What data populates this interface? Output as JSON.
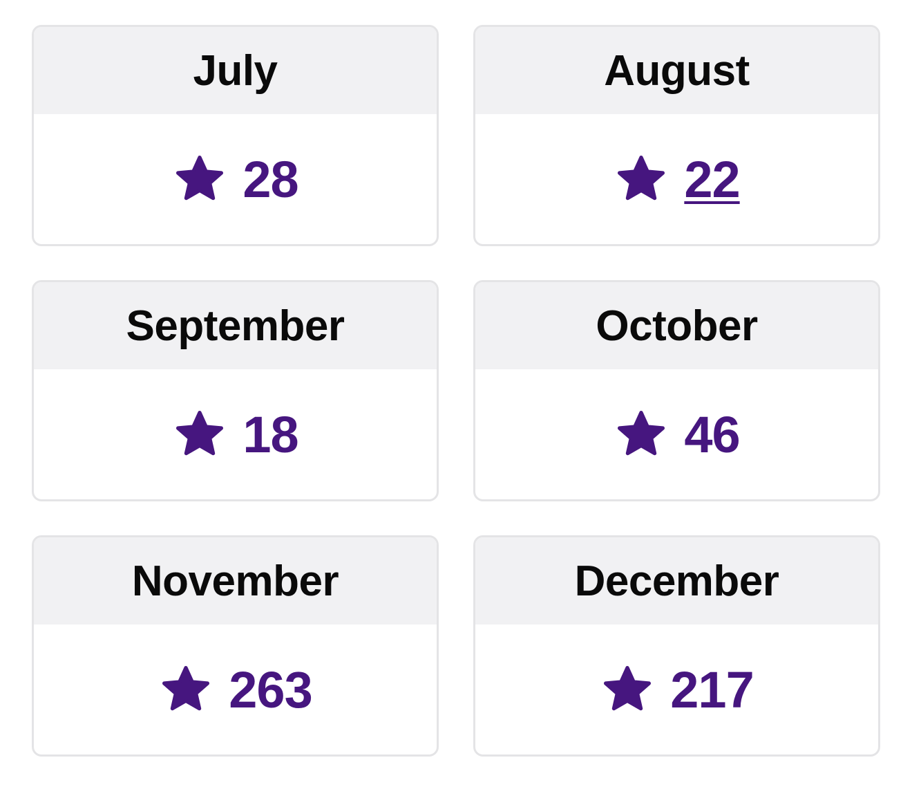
{
  "colors": {
    "accent": "#46167f",
    "header_bg": "#f1f1f3",
    "border": "#e4e4e6",
    "text": "#0a0a0a"
  },
  "icons": {
    "rating": "star-icon"
  },
  "cards": [
    {
      "month": "July",
      "count": "28"
    },
    {
      "month": "August",
      "count": "22"
    },
    {
      "month": "September",
      "count": "18"
    },
    {
      "month": "October",
      "count": "46"
    },
    {
      "month": "November",
      "count": "263"
    },
    {
      "month": "December",
      "count": "217"
    }
  ]
}
